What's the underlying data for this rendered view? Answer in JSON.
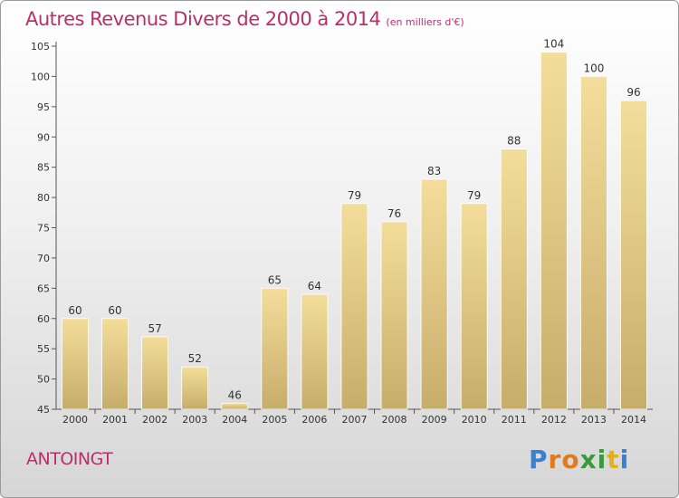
{
  "chart_data": {
    "type": "bar",
    "title": "Autres Revenus Divers de 2000 à 2014",
    "subtitle": "(en milliers d'€)",
    "categories": [
      "2000",
      "2001",
      "2002",
      "2003",
      "2004",
      "2005",
      "2006",
      "2007",
      "2008",
      "2009",
      "2010",
      "2011",
      "2012",
      "2013",
      "2014"
    ],
    "values": [
      60,
      60,
      57,
      52,
      46,
      65,
      64,
      79,
      76,
      83,
      79,
      88,
      104,
      100,
      96
    ],
    "ylim": [
      45,
      105
    ],
    "yticks": [
      45,
      50,
      55,
      60,
      65,
      70,
      75,
      80,
      85,
      90,
      95,
      100,
      105
    ],
    "grid": false,
    "legend": "none",
    "bar_color_top": "#f4dd9a",
    "bar_color_bottom": "#c7ad6a"
  },
  "footer": {
    "commune": "ANTOINGT",
    "logo_letters": [
      "P",
      "r",
      "o",
      "x",
      "i",
      "t",
      "i"
    ],
    "logo_colors": [
      "#3a7fd0",
      "#e07a1e",
      "#e07a1e",
      "#3a9a3a",
      "#3a9a3a",
      "#e2b21a",
      "#3a7fd0"
    ]
  },
  "colors": {
    "title": "#b8306a",
    "axis": "#555555",
    "label": "#333333"
  }
}
